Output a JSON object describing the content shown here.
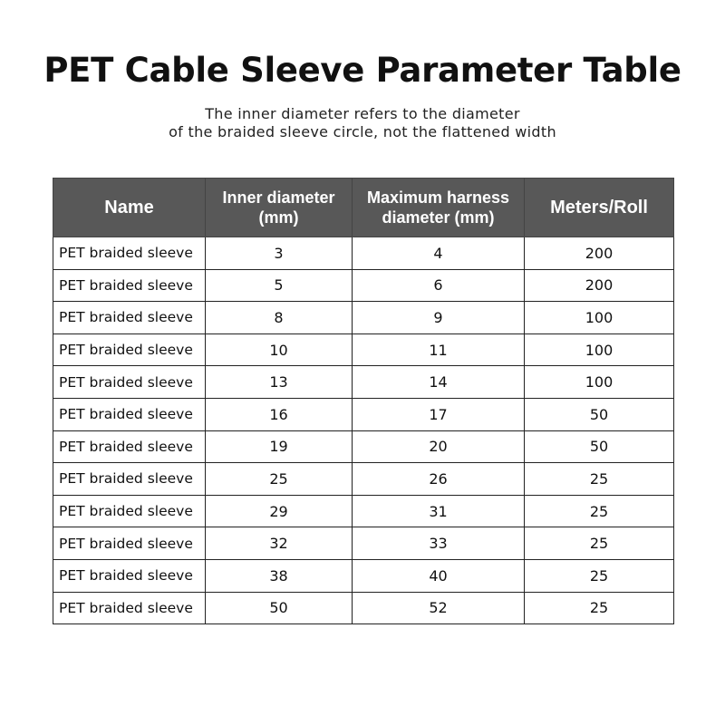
{
  "title": "PET Cable Sleeve Parameter Table",
  "subtitle_lines": [
    "The inner diameter refers to the diameter",
    "of the braided sleeve circle, not the flattened width"
  ],
  "table": {
    "headers": [
      "Name",
      "Inner diameter (mm)",
      "Maximum harness diameter (mm)",
      "Meters/Roll"
    ],
    "header_color": "#585858",
    "rows": [
      [
        "PET braided sleeve",
        "3",
        "4",
        "200"
      ],
      [
        "PET braided sleeve",
        "5",
        "6",
        "200"
      ],
      [
        "PET braided sleeve",
        "8",
        "9",
        "100"
      ],
      [
        "PET braided sleeve",
        "10",
        "11",
        "100"
      ],
      [
        "PET braided sleeve",
        "13",
        "14",
        "100"
      ],
      [
        "PET braided sleeve",
        "16",
        "17",
        "50"
      ],
      [
        "PET braided sleeve",
        "19",
        "20",
        "50"
      ],
      [
        "PET braided sleeve",
        "25",
        "26",
        "25"
      ],
      [
        "PET braided sleeve",
        "29",
        "31",
        "25"
      ],
      [
        "PET braided sleeve",
        "32",
        "33",
        "25"
      ],
      [
        "PET braided sleeve",
        "38",
        "40",
        "25"
      ],
      [
        "PET braided sleeve",
        "50",
        "52",
        "25"
      ]
    ]
  }
}
